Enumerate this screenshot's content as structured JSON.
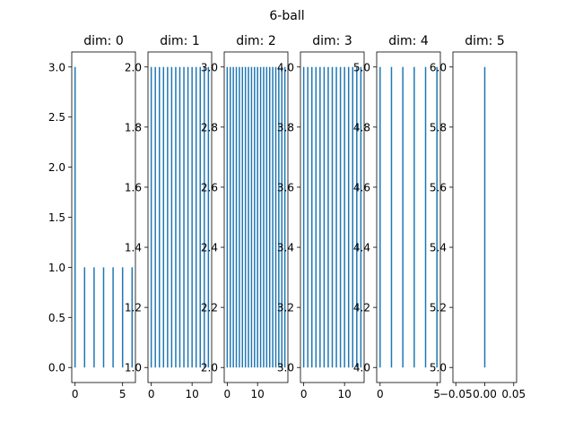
{
  "chart_data": {
    "type": "barcode",
    "suptitle": "6-ball",
    "bar_color": "#1f77b4",
    "panels": [
      {
        "title": "dim: 0",
        "xlim": [
          -0.35,
          6.35
        ],
        "ylim": [
          -0.15,
          3.15
        ],
        "xticks": [
          0,
          5
        ],
        "xtick_labels": [
          "0",
          "5"
        ],
        "yticks": [
          0.0,
          0.5,
          1.0,
          1.5,
          2.0,
          2.5,
          3.0
        ],
        "ytick_labels": [
          "0.0",
          "0.5",
          "1.0",
          "1.5",
          "2.0",
          "2.5",
          "3.0"
        ],
        "intervals": [
          [
            0,
            3
          ],
          [
            1,
            1
          ],
          [
            2,
            1
          ],
          [
            3,
            1
          ],
          [
            4,
            1
          ],
          [
            5,
            1
          ],
          [
            6,
            1
          ]
        ],
        "baseline": 0
      },
      {
        "title": "dim: 1",
        "xlim": [
          -0.8,
          14.8
        ],
        "ylim": [
          0.95,
          2.05
        ],
        "xticks": [
          0,
          10
        ],
        "xtick_labels": [
          "0",
          "10"
        ],
        "yticks": [
          1.0,
          1.2,
          1.4,
          1.6,
          1.8,
          2.0
        ],
        "ytick_labels": [
          "1.0",
          "1.2",
          "1.4",
          "1.6",
          "1.8",
          "2.0"
        ],
        "count": 15,
        "from": 1.0,
        "to": 2.0
      },
      {
        "title": "dim: 2",
        "xlim": [
          -1.0,
          20.0
        ],
        "ylim": [
          1.95,
          3.05
        ],
        "xticks": [
          0,
          10
        ],
        "xtick_labels": [
          "0",
          "10"
        ],
        "yticks": [
          2.0,
          2.2,
          2.4,
          2.6,
          2.8,
          3.0
        ],
        "ytick_labels": [
          "2.0",
          "2.2",
          "2.4",
          "2.6",
          "2.8",
          "3.0"
        ],
        "count": 20,
        "from": 2.0,
        "to": 3.0
      },
      {
        "title": "dim: 3",
        "xlim": [
          -0.8,
          14.8
        ],
        "ylim": [
          2.95,
          4.05
        ],
        "xticks": [
          0,
          10
        ],
        "xtick_labels": [
          "0",
          "10"
        ],
        "yticks": [
          3.0,
          3.2,
          3.4,
          3.6,
          3.8,
          4.0
        ],
        "ytick_labels": [
          "3.0",
          "3.2",
          "3.4",
          "3.6",
          "3.8",
          "4.0"
        ],
        "count": 15,
        "from": 3.0,
        "to": 4.0
      },
      {
        "title": "dim: 4",
        "xlim": [
          -0.3,
          5.3
        ],
        "ylim": [
          3.95,
          5.05
        ],
        "xticks": [
          0,
          5
        ],
        "xtick_labels": [
          "0",
          "5"
        ],
        "yticks": [
          4.0,
          4.2,
          4.4,
          4.6,
          4.8,
          5.0
        ],
        "ytick_labels": [
          "4.0",
          "4.2",
          "4.4",
          "4.6",
          "4.8",
          "5.0"
        ],
        "count": 6,
        "from": 4.0,
        "to": 5.0
      },
      {
        "title": "dim: 5",
        "xlim": [
          -0.055,
          0.055
        ],
        "ylim": [
          4.95,
          6.05
        ],
        "xticks": [
          -0.05,
          0.0,
          0.05
        ],
        "xtick_labels": [
          "−0.05",
          "0.00",
          "0.05"
        ],
        "yticks": [
          5.0,
          5.2,
          5.4,
          5.6,
          5.8,
          6.0
        ],
        "ytick_labels": [
          "5.0",
          "5.2",
          "5.4",
          "5.6",
          "5.8",
          "6.0"
        ],
        "count": 1,
        "from": 5.0,
        "to": 6.0
      }
    ]
  }
}
